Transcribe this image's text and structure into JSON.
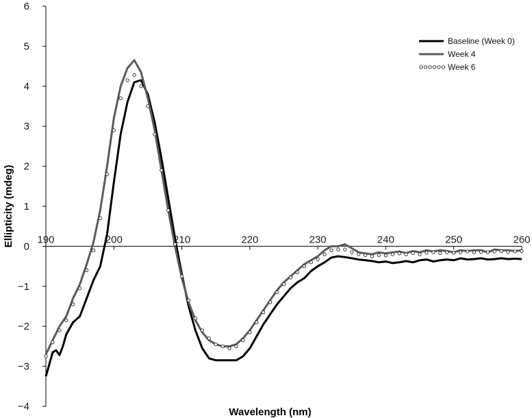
{
  "chart_data": {
    "type": "line",
    "xlabel": "Wavelength (nm)",
    "ylabel": "Ellipticity (mdeg)",
    "xlim": [
      190,
      260
    ],
    "ylim": [
      -4,
      6
    ],
    "xticks": [
      190,
      200,
      210,
      220,
      230,
      240,
      250,
      260
    ],
    "yticks": [
      -4,
      -3,
      -2,
      -1,
      0,
      1,
      2,
      3,
      4,
      5,
      6
    ],
    "grid": false,
    "legend_position": "top-right",
    "series": [
      {
        "name": "Baseline (Week 0)",
        "color": "#000000",
        "style": "solid",
        "x": [
          190,
          190.5,
          191,
          191.5,
          192,
          192.5,
          193,
          194,
          195,
          196,
          197,
          198,
          199,
          200,
          201,
          202,
          203,
          204,
          205,
          206,
          207,
          208,
          209,
          210,
          211,
          212,
          213,
          214,
          215,
          216,
          217,
          218,
          219,
          220,
          221,
          222,
          223,
          224,
          225,
          226,
          227,
          228,
          229,
          230,
          231,
          232,
          233,
          234,
          235,
          236,
          237,
          238,
          239,
          240,
          241,
          242,
          243,
          244,
          245,
          246,
          247,
          248,
          249,
          250,
          251,
          252,
          253,
          254,
          255,
          256,
          257,
          258,
          259,
          260
        ],
        "y": [
          -3.25,
          -2.95,
          -2.65,
          -2.6,
          -2.72,
          -2.5,
          -2.2,
          -1.9,
          -1.75,
          -1.3,
          -0.85,
          -0.5,
          0.3,
          1.6,
          2.8,
          3.6,
          4.1,
          4.15,
          3.8,
          3.1,
          2.2,
          1.2,
          0.2,
          -0.7,
          -1.5,
          -2.1,
          -2.55,
          -2.8,
          -2.85,
          -2.85,
          -2.85,
          -2.85,
          -2.75,
          -2.55,
          -2.25,
          -1.95,
          -1.7,
          -1.45,
          -1.25,
          -1.05,
          -0.9,
          -0.8,
          -0.62,
          -0.5,
          -0.4,
          -0.28,
          -0.25,
          -0.27,
          -0.3,
          -0.33,
          -0.35,
          -0.37,
          -0.4,
          -0.38,
          -0.42,
          -0.4,
          -0.37,
          -0.4,
          -0.35,
          -0.33,
          -0.38,
          -0.35,
          -0.33,
          -0.35,
          -0.3,
          -0.33,
          -0.32,
          -0.3,
          -0.33,
          -0.32,
          -0.3,
          -0.32,
          -0.31,
          -0.32
        ]
      },
      {
        "name": "Week 4",
        "color": "#5a5a5a",
        "style": "solid",
        "x": [
          190,
          191,
          192,
          193,
          194,
          195,
          196,
          197,
          198,
          199,
          200,
          201,
          202,
          203,
          204,
          205,
          206,
          207,
          208,
          209,
          210,
          211,
          212,
          213,
          214,
          215,
          216,
          217,
          218,
          219,
          220,
          221,
          222,
          223,
          224,
          225,
          226,
          227,
          228,
          229,
          230,
          231,
          232,
          233,
          234,
          235,
          236,
          237,
          238,
          239,
          240,
          241,
          242,
          243,
          244,
          245,
          246,
          247,
          248,
          249,
          250,
          251,
          252,
          253,
          254,
          255,
          256,
          257,
          258,
          259,
          260
        ],
        "y": [
          -2.7,
          -2.35,
          -2.0,
          -1.75,
          -1.3,
          -0.95,
          -0.45,
          0.1,
          0.9,
          2.0,
          3.2,
          4.0,
          4.45,
          4.65,
          4.35,
          3.7,
          2.9,
          1.9,
          0.9,
          0.0,
          -0.8,
          -1.4,
          -1.85,
          -2.15,
          -2.35,
          -2.45,
          -2.5,
          -2.5,
          -2.45,
          -2.3,
          -2.1,
          -1.85,
          -1.6,
          -1.35,
          -1.1,
          -0.9,
          -0.75,
          -0.6,
          -0.45,
          -0.35,
          -0.25,
          -0.1,
          0.0,
          0.0,
          0.05,
          -0.05,
          -0.15,
          -0.18,
          -0.2,
          -0.15,
          -0.18,
          -0.15,
          -0.13,
          -0.17,
          -0.12,
          -0.15,
          -0.1,
          -0.13,
          -0.1,
          -0.12,
          -0.15,
          -0.1,
          -0.12,
          -0.1,
          -0.1,
          -0.15,
          -0.08,
          -0.1,
          -0.1,
          -0.12,
          -0.1
        ]
      },
      {
        "name": "Week 6",
        "color": "#222222",
        "style": "markers",
        "x": [
          190,
          191,
          192,
          193,
          194,
          195,
          196,
          197,
          198,
          199,
          200,
          201,
          202,
          203,
          204,
          205,
          206,
          207,
          208,
          209,
          210,
          211,
          212,
          213,
          214,
          215,
          216,
          217,
          218,
          219,
          220,
          221,
          222,
          223,
          224,
          225,
          226,
          227,
          228,
          229,
          230,
          231,
          232,
          233,
          234,
          235,
          236,
          237,
          238,
          239,
          240,
          241,
          242,
          243,
          244,
          245,
          246,
          247,
          248,
          249,
          250,
          251,
          252,
          253,
          254,
          255,
          256,
          257,
          258,
          259,
          260
        ],
        "y": [
          -2.75,
          -2.4,
          -2.1,
          -1.85,
          -1.45,
          -1.05,
          -0.6,
          -0.1,
          0.7,
          1.8,
          2.9,
          3.7,
          4.15,
          4.28,
          4.0,
          3.5,
          2.8,
          1.9,
          0.9,
          0.05,
          -0.75,
          -1.35,
          -1.8,
          -2.1,
          -2.3,
          -2.45,
          -2.5,
          -2.55,
          -2.5,
          -2.35,
          -2.15,
          -1.9,
          -1.65,
          -1.4,
          -1.15,
          -0.95,
          -0.78,
          -0.65,
          -0.5,
          -0.4,
          -0.32,
          -0.2,
          -0.1,
          -0.08,
          -0.08,
          -0.15,
          -0.2,
          -0.22,
          -0.25,
          -0.22,
          -0.23,
          -0.2,
          -0.18,
          -0.2,
          -0.17,
          -0.2,
          -0.16,
          -0.15,
          -0.17,
          -0.15,
          -0.16,
          -0.15,
          -0.13,
          -0.15,
          -0.14,
          -0.15,
          -0.13,
          -0.12,
          -0.14,
          -0.13,
          -0.12
        ]
      }
    ]
  }
}
